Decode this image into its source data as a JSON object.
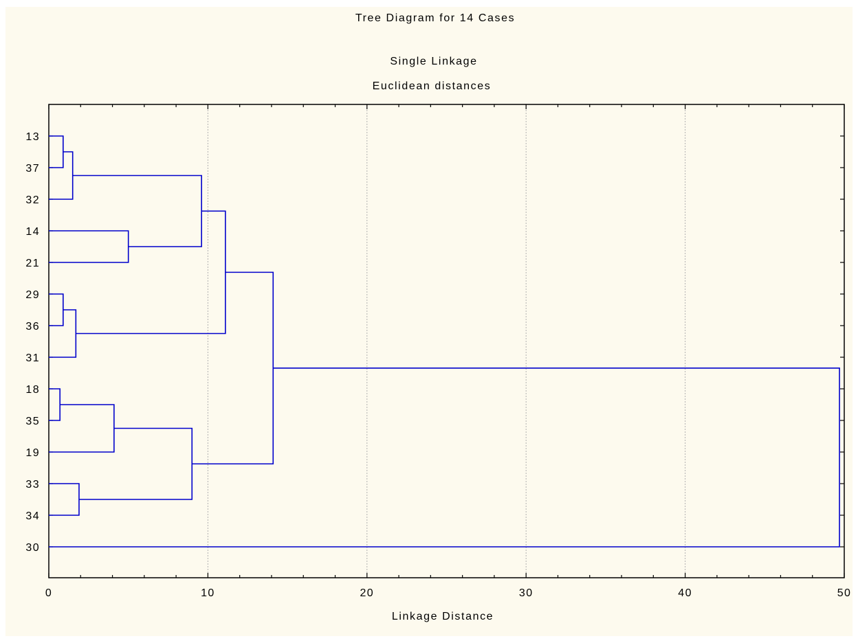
{
  "chart_data": {
    "type": "dendrogram",
    "title": "Tree Diagram for 14 Cases",
    "subtitle": "Single Linkage",
    "subtitle2": "Euclidean distances",
    "xlabel": "Linkage Distance",
    "xlim": [
      0,
      50
    ],
    "xticks": [
      0,
      10,
      20,
      30,
      40,
      50
    ],
    "grid": true,
    "cases": [
      "13",
      "37",
      "32",
      "14",
      "21",
      "29",
      "36",
      "31",
      "18",
      "35",
      "19",
      "33",
      "34",
      "30"
    ],
    "merges": [
      {
        "id": "a",
        "left": "13",
        "right": "37",
        "distance": 0.9
      },
      {
        "id": "b",
        "left": "a",
        "right": "32",
        "distance": 1.5
      },
      {
        "id": "c",
        "left": "14",
        "right": "21",
        "distance": 5.0
      },
      {
        "id": "d",
        "left": "b",
        "right": "c",
        "distance": 9.6
      },
      {
        "id": "e",
        "left": "29",
        "right": "36",
        "distance": 0.9
      },
      {
        "id": "f",
        "left": "e",
        "right": "31",
        "distance": 1.7
      },
      {
        "id": "g",
        "left": "d",
        "right": "f",
        "distance": 11.1
      },
      {
        "id": "h",
        "left": "18",
        "right": "35",
        "distance": 0.7
      },
      {
        "id": "i",
        "left": "h",
        "right": "19",
        "distance": 4.1
      },
      {
        "id": "j",
        "left": "33",
        "right": "34",
        "distance": 1.9
      },
      {
        "id": "k",
        "left": "i",
        "right": "j",
        "distance": 9.0
      },
      {
        "id": "l",
        "left": "g",
        "right": "k",
        "distance": 14.1
      },
      {
        "id": "m",
        "left": "l",
        "right": "30",
        "distance": 49.7
      }
    ],
    "colors": {
      "line": "#0000cc",
      "background": "#fdfaee",
      "grid": "#b0b0b0"
    }
  }
}
